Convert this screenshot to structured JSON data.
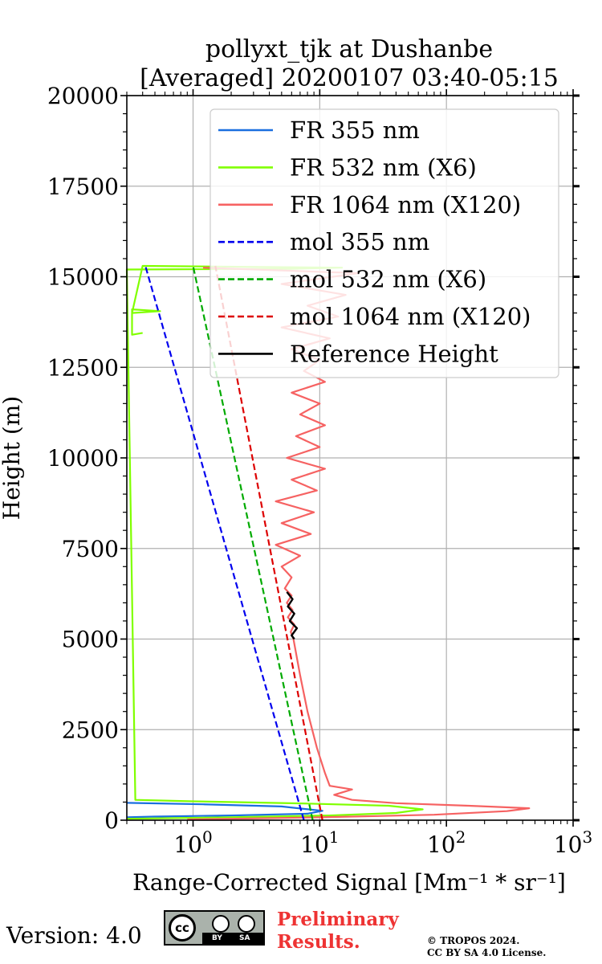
{
  "chart_data": {
    "type": "line",
    "title_line1": "pollyxt_tjk at Dushanbe",
    "title_line2": "[Averaged] 20200107 03:40-05:15",
    "xlabel": "Range-Corrected Signal [Mm⁻¹ * sr⁻¹]",
    "ylabel": "Height (m)",
    "xscale": "log",
    "xlim": [
      0.3,
      1000
    ],
    "ylim": [
      0,
      20000
    ],
    "grid": true,
    "legend_position": "upper-right",
    "x_ticks": [
      {
        "value": 1,
        "label_base": "10",
        "label_exp": "0"
      },
      {
        "value": 10,
        "label_base": "10",
        "label_exp": "1"
      },
      {
        "value": 100,
        "label_base": "10",
        "label_exp": "2"
      },
      {
        "value": 1000,
        "label_base": "10",
        "label_exp": "3"
      }
    ],
    "y_ticks": [
      0,
      2500,
      5000,
      7500,
      10000,
      12500,
      15000,
      17500,
      20000
    ],
    "y_tick_labels": [
      "0",
      "2500",
      "5000",
      "7500",
      "10000",
      "12500",
      "15000",
      "17500",
      "20000"
    ],
    "series": [
      {
        "name": "FR 355 nm",
        "color": "#1a6fdf",
        "style": "solid",
        "points": [
          [
            0.3,
            80
          ],
          [
            0.5,
            100
          ],
          [
            2,
            130
          ],
          [
            8,
            180
          ],
          [
            10.5,
            260
          ],
          [
            5,
            380
          ],
          [
            1.2,
            440
          ],
          [
            0.3,
            480
          ]
        ]
      },
      {
        "name": "FR 532 nm (X6)",
        "color": "#80ff00",
        "style": "solid",
        "points": [
          [
            0.3,
            40
          ],
          [
            2,
            80
          ],
          [
            12,
            130
          ],
          [
            40,
            200
          ],
          [
            65,
            300
          ],
          [
            35,
            400
          ],
          [
            8,
            460
          ],
          [
            1,
            520
          ],
          [
            0.35,
            560
          ],
          [
            0.3,
            15200
          ],
          [
            6,
            15220
          ],
          [
            15,
            15250
          ],
          [
            0.4,
            15300
          ],
          [
            0.33,
            14000
          ],
          [
            0.55,
            14050
          ],
          [
            0.33,
            14100
          ],
          [
            0.33,
            13400
          ],
          [
            0.4,
            13450
          ]
        ]
      },
      {
        "name": "FR 1064 nm (X120)",
        "color": "#f66262",
        "style": "solid",
        "points": [
          [
            0.9,
            20
          ],
          [
            10,
            80
          ],
          [
            80,
            150
          ],
          [
            300,
            250
          ],
          [
            450,
            330
          ],
          [
            150,
            400
          ],
          [
            40,
            470
          ],
          [
            18,
            560
          ],
          [
            13,
            700
          ],
          [
            18,
            850
          ],
          [
            12,
            950
          ],
          [
            11,
            1300
          ],
          [
            9.5,
            2000
          ],
          [
            8,
            3000
          ],
          [
            7,
            4000
          ],
          [
            6.2,
            5000
          ],
          [
            5.9,
            5200
          ],
          [
            6.3,
            5400
          ],
          [
            5.6,
            5600
          ],
          [
            6.1,
            5800
          ],
          [
            5.5,
            6000
          ],
          [
            6,
            6200
          ],
          [
            5.3,
            6400
          ],
          [
            6,
            6700
          ],
          [
            5,
            7000
          ],
          [
            7,
            7300
          ],
          [
            4.5,
            7600
          ],
          [
            8.5,
            7900
          ],
          [
            5,
            8200
          ],
          [
            9,
            8500
          ],
          [
            4.5,
            8800
          ],
          [
            9.5,
            9100
          ],
          [
            6,
            9400
          ],
          [
            11,
            9700
          ],
          [
            5.5,
            10000
          ],
          [
            10,
            10300
          ],
          [
            6.5,
            10600
          ],
          [
            11,
            10900
          ],
          [
            7,
            11200
          ],
          [
            10,
            11500
          ],
          [
            6,
            11800
          ],
          [
            11,
            12100
          ],
          [
            7.5,
            12400
          ],
          [
            10,
            12700
          ],
          [
            6,
            13000
          ],
          [
            12,
            13300
          ],
          [
            5,
            13600
          ],
          [
            14,
            13900
          ],
          [
            8,
            14200
          ],
          [
            16,
            14500
          ],
          [
            5,
            14800
          ],
          [
            20,
            15100
          ],
          [
            1.2,
            15250
          ]
        ]
      },
      {
        "name": "mol 355 nm",
        "color": "#0000ee",
        "style": "dashed",
        "points": [
          [
            7.5,
            0
          ],
          [
            0.42,
            15300
          ]
        ]
      },
      {
        "name": "mol 532 nm (X6)",
        "color": "#00aa00",
        "style": "dashed",
        "points": [
          [
            8.8,
            0
          ],
          [
            1.0,
            15300
          ]
        ]
      },
      {
        "name": "mol 1064 nm (X120)",
        "color": "#dd0000",
        "style": "dashed",
        "points": [
          [
            10.5,
            0
          ],
          [
            1.5,
            15300
          ]
        ]
      },
      {
        "name": "Reference Height",
        "color": "#000000",
        "style": "solid",
        "points": [
          [
            6.3,
            5000
          ],
          [
            6.0,
            5100
          ],
          [
            6.6,
            5300
          ],
          [
            5.8,
            5500
          ],
          [
            6.3,
            5700
          ],
          [
            5.6,
            5900
          ],
          [
            6.1,
            6100
          ],
          [
            5.5,
            6300
          ]
        ]
      }
    ]
  },
  "footer": {
    "version": "Version: 4.0",
    "preliminary_line1": "Preliminary",
    "preliminary_line2": "Results.",
    "copyright_line1": "© TROPOS 2024.",
    "copyright_line2": "CC BY SA 4.0 License.",
    "cc_badge": {
      "cc": "cc",
      "by": "BY",
      "sa": "SA"
    }
  }
}
